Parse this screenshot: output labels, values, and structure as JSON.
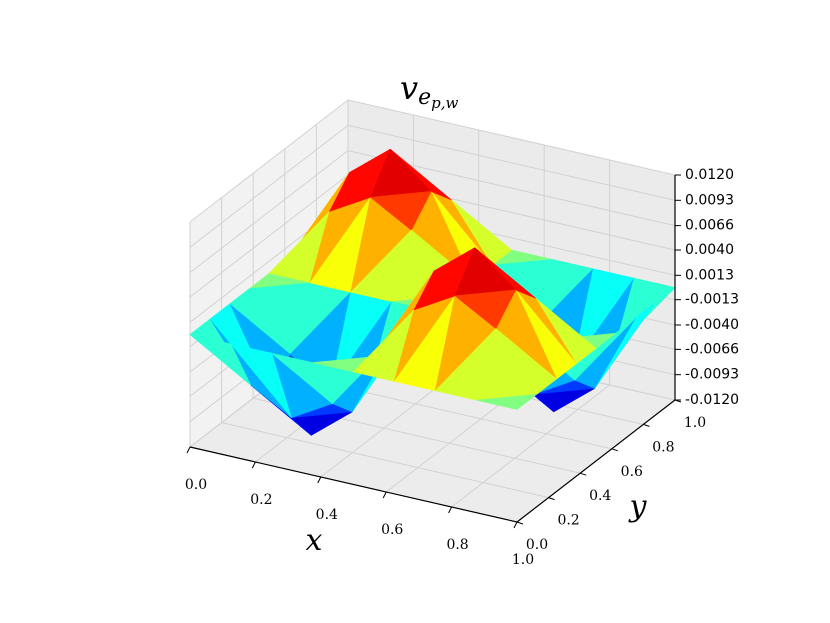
{
  "chart_data": {
    "type": "surface",
    "title": {
      "base": "v",
      "sub": "e",
      "subsub": "p,w"
    },
    "x_label": "x",
    "y_label": "y",
    "colormap": "jet",
    "x": [
      0,
      0.125,
      0.25,
      0.375,
      0.5,
      0.625,
      0.75,
      0.875,
      1
    ],
    "y": [
      0,
      0.125,
      0.25,
      0.375,
      0.5,
      0.625,
      0.75,
      0.875,
      1
    ],
    "z": [
      [
        0,
        0,
        0,
        0,
        0,
        0,
        0,
        0,
        0
      ],
      [
        0,
        -0.006,
        -0.0085,
        -0.006,
        0,
        0.006,
        0.0085,
        0.006,
        0
      ],
      [
        0,
        -0.0085,
        -0.012,
        -0.0085,
        0,
        0.0085,
        0.012,
        0.0085,
        0
      ],
      [
        0,
        -0.006,
        -0.0085,
        -0.006,
        0,
        0.006,
        0.0085,
        0.006,
        0
      ],
      [
        0,
        0,
        0,
        0,
        0,
        0,
        0,
        0,
        0
      ],
      [
        0,
        0.006,
        0.0085,
        0.006,
        0,
        -0.006,
        -0.0085,
        -0.006,
        0
      ],
      [
        0,
        0.0085,
        0.012,
        0.0085,
        0,
        -0.0085,
        -0.012,
        -0.0085,
        0
      ],
      [
        0,
        0.006,
        0.0085,
        0.006,
        0,
        -0.006,
        -0.0085,
        -0.006,
        0
      ],
      [
        0,
        0,
        0,
        0,
        0,
        0,
        0,
        0,
        0
      ]
    ],
    "xlim": [
      0,
      1
    ],
    "ylim": [
      0,
      1
    ],
    "zlim": [
      -0.012,
      0.012
    ],
    "xticks": [
      {
        "value": 0,
        "label": "0.0"
      },
      0.2,
      0.4,
      0.6,
      0.8,
      {
        "value": 1,
        "label": "1.0"
      }
    ],
    "yticks": [
      {
        "value": 0,
        "label": "0.0"
      },
      0.2,
      0.4,
      0.6,
      0.8,
      {
        "value": 1,
        "label": "1.0"
      }
    ],
    "zticks": [
      {
        "value": -0.012,
        "label": "-0.0120"
      },
      -0.0093,
      -0.0066,
      {
        "value": -0.004,
        "label": "-0.0040"
      },
      -0.0013,
      0.0013,
      {
        "value": 0.004,
        "label": "0.0040"
      },
      0.0066,
      0.0093,
      {
        "value": 0.012,
        "label": "0.0120"
      }
    ],
    "grid": true
  }
}
